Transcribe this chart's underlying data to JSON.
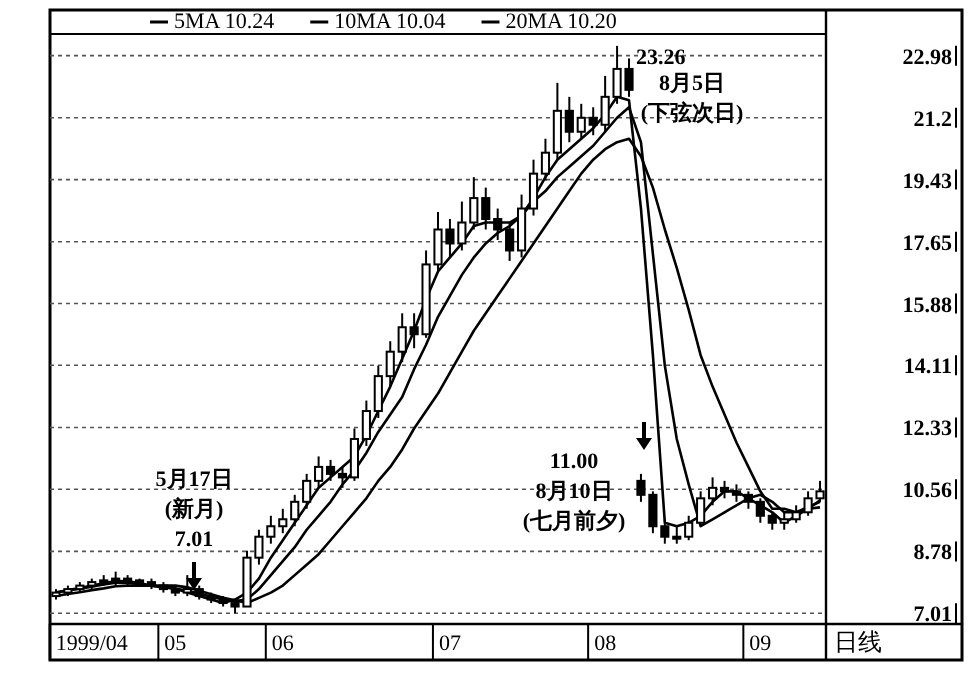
{
  "chart_data": {
    "type": "candlestick",
    "categories": [
      null,
      null,
      null,
      "1999/04",
      null,
      null,
      null,
      null,
      null,
      null,
      "05",
      null,
      null,
      null,
      null,
      null,
      null,
      null,
      null,
      "06",
      null,
      null,
      null,
      null,
      null,
      null,
      null,
      null,
      null,
      null,
      null,
      null,
      null,
      "07",
      null,
      null,
      null,
      null,
      null,
      null,
      null,
      null,
      null,
      null,
      null,
      null,
      "08",
      null,
      null,
      null,
      null,
      null,
      null,
      null,
      null,
      null,
      null,
      null,
      null,
      "09",
      null,
      null,
      null,
      null,
      null
    ],
    "ohlc": [
      [
        7.5,
        7.7,
        7.4,
        7.6
      ],
      [
        7.6,
        7.8,
        7.5,
        7.7
      ],
      [
        7.7,
        7.9,
        7.6,
        7.8
      ],
      [
        7.8,
        8.0,
        7.7,
        7.9
      ],
      [
        7.9,
        8.1,
        7.8,
        7.95
      ],
      [
        7.95,
        8.2,
        7.8,
        8.0
      ],
      [
        8.0,
        8.1,
        7.8,
        7.95
      ],
      [
        7.95,
        8.0,
        7.8,
        7.9
      ],
      [
        7.9,
        8.0,
        7.7,
        7.8
      ],
      [
        7.8,
        7.9,
        7.6,
        7.7
      ],
      [
        7.7,
        7.8,
        7.5,
        7.6
      ],
      [
        7.6,
        8.1,
        7.5,
        7.7
      ],
      [
        7.7,
        7.8,
        7.4,
        7.5
      ],
      [
        7.5,
        7.6,
        7.3,
        7.4
      ],
      [
        7.4,
        7.5,
        7.2,
        7.3
      ],
      [
        7.3,
        7.4,
        7.01,
        7.2
      ],
      [
        7.2,
        8.8,
        7.2,
        8.6
      ],
      [
        8.6,
        9.4,
        8.4,
        9.2
      ],
      [
        9.2,
        9.8,
        9.0,
        9.5
      ],
      [
        9.5,
        10.0,
        9.3,
        9.7
      ],
      [
        9.7,
        10.4,
        9.5,
        10.2
      ],
      [
        10.2,
        11.0,
        10.0,
        10.8
      ],
      [
        10.8,
        11.5,
        10.6,
        11.2
      ],
      [
        11.2,
        11.4,
        10.8,
        11.0
      ],
      [
        11.0,
        11.2,
        10.6,
        10.9
      ],
      [
        10.9,
        12.3,
        10.8,
        12.0
      ],
      [
        12.0,
        13.1,
        11.8,
        12.8
      ],
      [
        12.8,
        14.1,
        12.6,
        13.8
      ],
      [
        13.8,
        14.8,
        13.5,
        14.5
      ],
      [
        14.5,
        15.6,
        14.2,
        15.2
      ],
      [
        15.2,
        15.6,
        14.6,
        15.0
      ],
      [
        15.0,
        17.4,
        14.9,
        17.0
      ],
      [
        17.0,
        18.5,
        16.8,
        18.0
      ],
      [
        18.0,
        18.3,
        17.2,
        17.6
      ],
      [
        17.6,
        18.8,
        17.4,
        18.2
      ],
      [
        18.2,
        19.5,
        18.0,
        18.9
      ],
      [
        18.9,
        19.2,
        18.0,
        18.3
      ],
      [
        18.3,
        18.6,
        17.7,
        18.0
      ],
      [
        18.0,
        18.2,
        17.1,
        17.4
      ],
      [
        17.4,
        19.0,
        17.2,
        18.6
      ],
      [
        18.6,
        20.0,
        18.4,
        19.6
      ],
      [
        19.6,
        20.6,
        19.4,
        20.2
      ],
      [
        20.2,
        22.2,
        20.0,
        21.4
      ],
      [
        21.4,
        21.8,
        20.5,
        20.8
      ],
      [
        20.8,
        21.6,
        20.6,
        21.2
      ],
      [
        21.2,
        21.5,
        20.7,
        21.0
      ],
      [
        21.0,
        22.4,
        20.8,
        21.8
      ],
      [
        21.8,
        23.26,
        21.6,
        22.6
      ],
      [
        22.6,
        22.9,
        21.8,
        22.0
      ],
      [
        10.8,
        11.0,
        10.2,
        10.4
      ],
      [
        10.4,
        10.5,
        9.3,
        9.5
      ],
      [
        9.5,
        9.7,
        9.0,
        9.2
      ],
      [
        9.2,
        9.5,
        9.0,
        9.2
      ],
      [
        9.2,
        9.8,
        9.1,
        9.6
      ],
      [
        9.6,
        10.5,
        9.5,
        10.3
      ],
      [
        10.3,
        10.9,
        10.1,
        10.6
      ],
      [
        10.6,
        10.8,
        10.3,
        10.5
      ],
      [
        10.5,
        10.7,
        10.2,
        10.4
      ],
      [
        10.4,
        10.5,
        10.0,
        10.2
      ],
      [
        10.2,
        10.3,
        9.6,
        9.8
      ],
      [
        9.8,
        9.9,
        9.4,
        9.6
      ],
      [
        9.6,
        9.9,
        9.4,
        9.7
      ],
      [
        9.7,
        10.1,
        9.6,
        9.9
      ],
      [
        9.9,
        10.5,
        9.8,
        10.3
      ],
      [
        10.3,
        10.8,
        10.2,
        10.5
      ]
    ],
    "series": [
      {
        "name": "5MA 10.24",
        "type": "line",
        "color": "#000000",
        "values": [
          7.6,
          7.67,
          7.73,
          7.8,
          7.87,
          7.93,
          7.92,
          7.87,
          7.8,
          7.75,
          7.71,
          7.6,
          7.5,
          7.4,
          7.3,
          7.4,
          7.6,
          8.0,
          8.6,
          9.1,
          9.6,
          10.1,
          10.6,
          10.9,
          11.2,
          11.5,
          12.1,
          12.8,
          13.5,
          14.3,
          15.1,
          16.0,
          16.8,
          17.2,
          17.6,
          18.1,
          18.2,
          18.2,
          18.2,
          18.4,
          18.9,
          19.5,
          20.0,
          20.3,
          20.6,
          20.9,
          21.3,
          21.8,
          21.7,
          18.6,
          14.4,
          9.6,
          9.5,
          9.6,
          9.8,
          10.2,
          10.5,
          10.5,
          10.3,
          10.1,
          9.9,
          9.6,
          9.8,
          10.0,
          10.24
        ]
      },
      {
        "name": "10MA 10.04",
        "type": "line",
        "color": "#000000",
        "values": [
          7.6,
          7.66,
          7.71,
          7.77,
          7.83,
          7.88,
          7.88,
          7.84,
          7.8,
          7.76,
          7.72,
          7.65,
          7.57,
          7.48,
          7.4,
          7.36,
          7.4,
          7.7,
          8.1,
          8.5,
          8.9,
          9.4,
          9.8,
          10.2,
          10.7,
          11.1,
          11.6,
          12.2,
          12.7,
          13.2,
          14.0,
          14.7,
          15.5,
          16.1,
          16.7,
          17.2,
          17.6,
          17.9,
          18.1,
          18.4,
          18.8,
          19.1,
          19.5,
          19.8,
          20.1,
          20.4,
          20.8,
          21.2,
          21.5,
          20.5,
          17.3,
          14.1,
          12.0,
          10.7,
          9.5,
          9.7,
          9.9,
          10.1,
          10.3,
          10.4,
          10.2,
          9.9,
          9.9,
          10.0,
          10.04
        ]
      },
      {
        "name": "20MA 10.20",
        "type": "line",
        "color": "#000000",
        "values": [
          7.5,
          7.56,
          7.61,
          7.67,
          7.72,
          7.78,
          7.8,
          7.8,
          7.8,
          7.8,
          7.8,
          7.75,
          7.65,
          7.55,
          7.45,
          7.38,
          7.3,
          7.45,
          7.6,
          7.8,
          8.1,
          8.4,
          8.7,
          9.1,
          9.5,
          9.9,
          10.3,
          10.8,
          11.2,
          11.7,
          12.3,
          12.8,
          13.3,
          13.9,
          14.5,
          15.1,
          15.6,
          16.1,
          16.6,
          17.1,
          17.6,
          18.1,
          18.6,
          19.1,
          19.6,
          20.0,
          20.3,
          20.5,
          20.6,
          20.1,
          19.2,
          18.0,
          16.9,
          15.7,
          14.4,
          13.5,
          12.7,
          11.9,
          11.2,
          10.5,
          10.0,
          10.0,
          9.9,
          10.05,
          10.2
        ]
      }
    ],
    "xlabel": "日线",
    "ylim": [
      6.7,
      23.6
    ],
    "yticks": [
      7.01,
      8.78,
      10.56,
      12.33,
      14.11,
      15.88,
      17.65,
      19.43,
      21.2,
      22.98
    ],
    "grid": "y",
    "legend": "top",
    "annotations": [
      "23.26",
      "8月5日\n(下弦次日)",
      "5月17日\n(新月)\n7.01",
      "11.00\n8月10日\n(七月前夕)"
    ]
  }
}
